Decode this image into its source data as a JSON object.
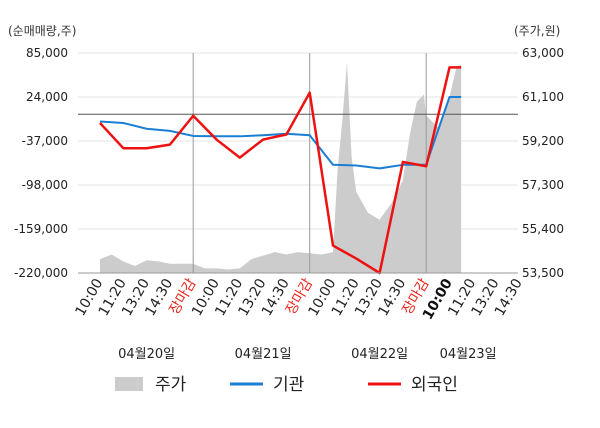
{
  "chart_data": {
    "type": "line",
    "left_unit": "(순매매량,주)",
    "right_unit": "(주가,원)",
    "left_axis": {
      "ylim": [
        -220000,
        85000
      ],
      "ticks": [
        85000,
        24000,
        -37000,
        -98000,
        -159000,
        -220000
      ],
      "tick_labels": [
        "85,000",
        "24,000",
        "-37,000",
        "-98,000",
        "-159,000",
        "-220,000"
      ]
    },
    "right_axis": {
      "ylim": [
        53500,
        63000
      ],
      "ticks": [
        63000,
        61100,
        59200,
        57300,
        55400,
        53500
      ],
      "tick_labels": [
        "63,000",
        "61,100",
        "59,200",
        "57,300",
        "55,400",
        "53,500"
      ]
    },
    "x_labels": [
      "10:00",
      "11:20",
      "13:20",
      "14:30",
      "장마감",
      "10:00",
      "11:20",
      "13:20",
      "14:30",
      "장마감",
      "10:00",
      "11:20",
      "13:20",
      "14:30",
      "장마감",
      "10:00",
      "11:20",
      "13:20",
      "14:30"
    ],
    "closing_label": "장마감",
    "day_labels": [
      {
        "text": "04월20일",
        "slot": 2
      },
      {
        "text": "04월21일",
        "slot": 7
      },
      {
        "text": "04월22일",
        "slot": 12
      },
      {
        "text": "04월23일",
        "slot": 15.8
      }
    ],
    "x_tick_lines": [
      4,
      9,
      14
    ],
    "last_slot": 15.5,
    "legend": [
      {
        "key": "price",
        "label": "주가",
        "color": "#cccccc"
      },
      {
        "key": "inst",
        "label": "기관",
        "color": "#1a7fd4"
      },
      {
        "key": "foreign",
        "label": "외국인",
        "color": "#ee1111"
      }
    ],
    "series": [
      {
        "name": "기관",
        "axis": "left",
        "color": "#1a7fd4",
        "x": [
          0,
          1,
          2,
          3,
          4,
          5,
          6,
          7,
          8,
          9,
          10,
          11,
          12,
          13,
          14,
          15,
          15.5
        ],
        "values": [
          -10000,
          -12000,
          -20000,
          -23000,
          -30000,
          -30500,
          -30500,
          -29000,
          -27000,
          -29000,
          -70000,
          -71000,
          -75000,
          -70000,
          -70000,
          24000,
          24000
        ]
      },
      {
        "name": "외국인",
        "axis": "left",
        "color": "#ee1111",
        "x": [
          0,
          1,
          2,
          3,
          4,
          5,
          6,
          7,
          8,
          9,
          10,
          11,
          12,
          13,
          14,
          15,
          15.5
        ],
        "values": [
          -12000,
          -47000,
          -47000,
          -42000,
          -2000,
          -35000,
          -60000,
          -35000,
          -28000,
          30000,
          -182000,
          -200000,
          -220000,
          -66000,
          -72000,
          65000,
          65000
        ]
      },
      {
        "name": "주가",
        "axis": "right",
        "color": "#cccccc",
        "x": [
          0,
          0.5,
          1,
          1.5,
          2,
          2.5,
          3,
          3.5,
          4,
          4.5,
          5,
          5.5,
          6,
          6.5,
          7,
          7.5,
          8,
          8.5,
          9,
          9.5,
          10,
          10.2,
          10.4,
          10.6,
          10.8,
          11,
          11.5,
          12,
          12.5,
          13,
          13.3,
          13.6,
          13.9,
          14,
          14.5,
          15,
          15.3,
          15.5
        ],
        "values": [
          54100,
          54300,
          54000,
          53800,
          54050,
          54000,
          53900,
          53900,
          53900,
          53700,
          53700,
          53650,
          53700,
          54100,
          54250,
          54400,
          54300,
          54400,
          54350,
          54300,
          54400,
          58000,
          60100,
          62600,
          58500,
          57000,
          56100,
          55800,
          56500,
          57500,
          59500,
          60900,
          61200,
          60300,
          59800,
          61100,
          62400,
          62500
        ]
      }
    ]
  }
}
